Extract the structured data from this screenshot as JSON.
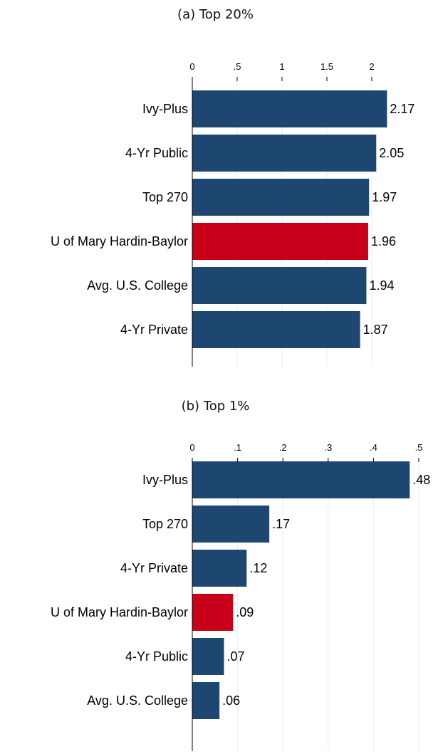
{
  "colors": {
    "bar": "#1d4670",
    "highlight": "#c8001a",
    "grid": "#ececec",
    "axis": "#000000"
  },
  "chart_data": [
    {
      "type": "bar",
      "orientation": "horizontal",
      "title": "(a) Top 20%",
      "categories": [
        "Ivy-Plus",
        "4-Yr Public",
        "Top 270",
        "U of Mary Hardin-Baylor",
        "Avg. U.S. College",
        "4-Yr Private"
      ],
      "values": [
        2.17,
        2.05,
        1.97,
        1.96,
        1.94,
        1.87
      ],
      "value_labels": [
        "2.17",
        "2.05",
        "1.97",
        "1.96",
        "1.94",
        "1.87"
      ],
      "highlight": "U of Mary Hardin-Baylor",
      "xticks": [
        0,
        0.5,
        1,
        1.5,
        2
      ],
      "xtick_labels": [
        "0",
        ".5",
        "1",
        "1.5",
        "2"
      ],
      "xlim": [
        0,
        2.5
      ],
      "grid": true,
      "axis_position": "top"
    },
    {
      "type": "bar",
      "orientation": "horizontal",
      "title": "(b) Top 1%",
      "categories": [
        "Ivy-Plus",
        "Top 270",
        "4-Yr Private",
        "U of Mary Hardin-Baylor",
        "4-Yr Public",
        "Avg. U.S. College"
      ],
      "values": [
        0.48,
        0.17,
        0.12,
        0.09,
        0.07,
        0.06
      ],
      "value_labels": [
        ".48",
        ".17",
        ".12",
        ".09",
        ".07",
        ".06"
      ],
      "highlight": "U of Mary Hardin-Baylor",
      "xticks": [
        0,
        0.1,
        0.2,
        0.3,
        0.4,
        0.5
      ],
      "xtick_labels": [
        "0",
        ".1",
        ".2",
        ".3",
        ".4",
        ".5"
      ],
      "xlim": [
        0,
        0.5
      ],
      "grid": true,
      "axis_position": "top"
    }
  ]
}
